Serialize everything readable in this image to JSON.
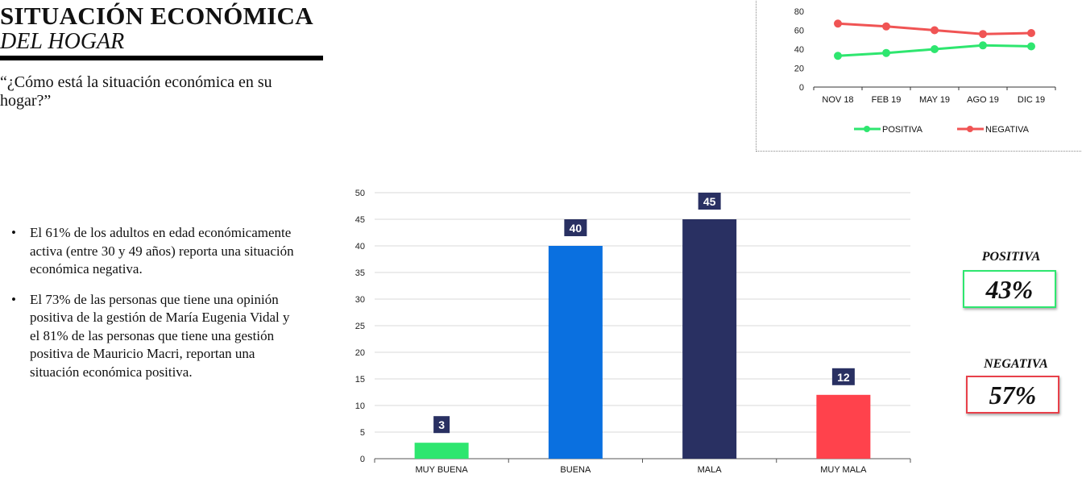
{
  "header": {
    "title_line1": "SITUACIÓN ECONÓMICA",
    "title_line2": "DEL HOGAR",
    "question": "“¿Cómo está la situación económica en su hogar?”"
  },
  "bullets": [
    "El 61% de los adultos en edad económicamente activa (entre 30 y 49 años) reporta una situación económica negativa.",
    "El 73% de las personas que tiene una opinión positiva de la gestión de María Eugenia Vidal y el 81% de las personas que tiene una gestión positiva de Mauricio Macri, reportan una situación económica positiva."
  ],
  "bullet_glyph": "•",
  "kpis": {
    "positive_label": "POSITIVA",
    "positive_value": "43%",
    "positive_color": "#2ee66f",
    "negative_label": "NEGATIVA",
    "negative_value": "57%",
    "negative_color": "#e8404a"
  },
  "chart_data": [
    {
      "type": "line",
      "x": [
        "NOV 18",
        "FEB 19",
        "MAY 19",
        "AGO 19",
        "DIC 19"
      ],
      "series": [
        {
          "name": "POSITIVA",
          "values": [
            33,
            36,
            40,
            44,
            43
          ],
          "color": "#2ee66f"
        },
        {
          "name": "NEGATIVA",
          "values": [
            67,
            64,
            60,
            56,
            57
          ],
          "color": "#f05454"
        }
      ],
      "ylim": [
        0,
        80
      ],
      "yticks": [
        "0",
        "20",
        "40",
        "60",
        "80"
      ],
      "grid": false,
      "legend": "bottom"
    },
    {
      "type": "bar",
      "categories": [
        "MUY BUENA",
        "BUENA",
        "MALA",
        "MUY MALA"
      ],
      "values": [
        3,
        40,
        45,
        12
      ],
      "colors": [
        "#2ee66f",
        "#0a70e0",
        "#293062",
        "#ff424c"
      ],
      "ylim": [
        0,
        50
      ],
      "yticks": [
        "0",
        "5",
        "10",
        "15",
        "20",
        "25",
        "30",
        "35",
        "40",
        "45",
        "50"
      ],
      "grid": true,
      "data_label_bg": "#293062"
    }
  ]
}
